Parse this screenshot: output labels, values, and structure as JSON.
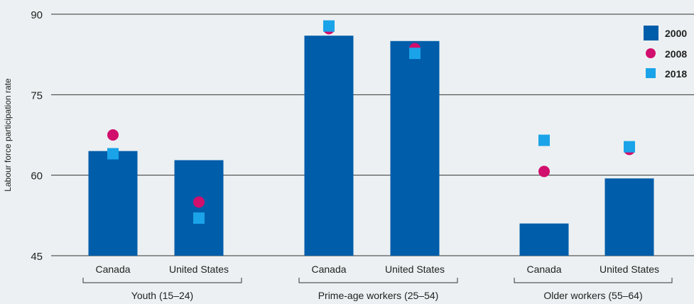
{
  "chart_data": {
    "type": "bar",
    "ylabel": "Labour force participation rate",
    "ylim": [
      45,
      90
    ],
    "yticks": [
      45,
      60,
      75,
      90
    ],
    "grid": true,
    "legend_position": "top-right",
    "groups": [
      {
        "label": "Youth (15–24)",
        "categories": [
          "Canada",
          "United States"
        ]
      },
      {
        "label": "Prime-age workers (25–54)",
        "categories": [
          "Canada",
          "United States"
        ]
      },
      {
        "label": "Older workers (55–64)",
        "categories": [
          "Canada",
          "United States"
        ]
      }
    ],
    "series": [
      {
        "name": "2000",
        "marker": "bar",
        "color": "#005daa",
        "values": [
          64.5,
          62.8,
          86.0,
          85.0,
          51.0,
          59.4
        ]
      },
      {
        "name": "2008",
        "marker": "circle",
        "color": "#d10f6d",
        "values": [
          67.5,
          55.0,
          87.3,
          83.6,
          60.7,
          64.8
        ]
      },
      {
        "name": "2018",
        "marker": "square",
        "color": "#1aa3e8",
        "values": [
          64.0,
          52.0,
          87.8,
          82.7,
          66.5,
          65.3
        ]
      }
    ]
  }
}
